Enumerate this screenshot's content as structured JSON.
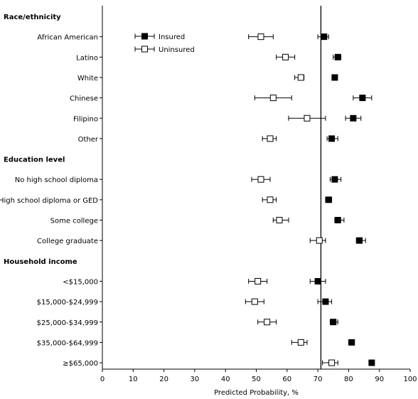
{
  "chart_data": {
    "type": "scatter",
    "xlabel": "Predicted Probability, %",
    "xlim": [
      0,
      100
    ],
    "xticks": [
      0,
      10,
      20,
      30,
      40,
      50,
      60,
      70,
      80,
      90,
      100
    ],
    "reference_line_x": 71,
    "legend": {
      "placement": "top-left",
      "entries": [
        {
          "name": "Insured",
          "marker": "filled-square"
        },
        {
          "name": "Uninsured",
          "marker": "open-square"
        }
      ]
    },
    "groups": [
      {
        "label": "Race/ethnicity",
        "rows": [
          {
            "label": "African American",
            "insured": {
              "value": 72,
              "low": 70,
              "high": 73.5
            },
            "uninsured": {
              "value": 51.5,
              "low": 47.5,
              "high": 55.5
            }
          },
          {
            "label": "Latino",
            "insured": {
              "value": 76.5,
              "low": 75,
              "high": 77.5
            },
            "uninsured": {
              "value": 59.5,
              "low": 56.5,
              "high": 62.5
            }
          },
          {
            "label": "White",
            "insured": {
              "value": 75.5,
              "low": 75,
              "high": 76
            },
            "uninsured": {
              "value": 64.5,
              "low": 62.5,
              "high": 65.5
            }
          },
          {
            "label": "Chinese",
            "insured": {
              "value": 84.5,
              "low": 81.5,
              "high": 87.5
            },
            "uninsured": {
              "value": 55.5,
              "low": 49.5,
              "high": 61.5
            }
          },
          {
            "label": "Filipino",
            "insured": {
              "value": 81.5,
              "low": 79,
              "high": 84
            },
            "uninsured": {
              "value": 66.5,
              "low": 60.5,
              "high": 72.5
            }
          },
          {
            "label": "Other",
            "insured": {
              "value": 74.5,
              "low": 73,
              "high": 76.5
            },
            "uninsured": {
              "value": 54.5,
              "low": 52,
              "high": 56.5
            }
          }
        ]
      },
      {
        "label": "Education level",
        "rows": [
          {
            "label": "No high school diploma",
            "insured": {
              "value": 75.5,
              "low": 74,
              "high": 77.5
            },
            "uninsured": {
              "value": 51.5,
              "low": 48.5,
              "high": 54.5
            }
          },
          {
            "label": "High school diploma or GED",
            "insured": {
              "value": 73.5,
              "low": 72.5,
              "high": 74.5
            },
            "uninsured": {
              "value": 54.5,
              "low": 52,
              "high": 56.5
            }
          },
          {
            "label": "Some college",
            "insured": {
              "value": 76.5,
              "low": 75.5,
              "high": 78.5
            },
            "uninsured": {
              "value": 57.5,
              "low": 55.5,
              "high": 60.5
            }
          },
          {
            "label": "College graduate",
            "insured": {
              "value": 83.5,
              "low": 82.5,
              "high": 85.5
            },
            "uninsured": {
              "value": 70.5,
              "low": 67.5,
              "high": 72.5
            }
          }
        ]
      },
      {
        "label": "Household income",
        "rows": [
          {
            "label": "<$15,000",
            "insured": {
              "value": 70,
              "low": 67.5,
              "high": 72.5
            },
            "uninsured": {
              "value": 50.5,
              "low": 47.5,
              "high": 53.5
            }
          },
          {
            "label": "$15,000-$24,999",
            "insured": {
              "value": 72.5,
              "low": 70,
              "high": 74.5
            },
            "uninsured": {
              "value": 49.5,
              "low": 46.5,
              "high": 52.5
            }
          },
          {
            "label": "$25,000-$34,999",
            "insured": {
              "value": 75,
              "low": 74,
              "high": 76.5
            },
            "uninsured": {
              "value": 53.5,
              "low": 50.5,
              "high": 56.5
            }
          },
          {
            "label": "$35,000-$64,999",
            "insured": {
              "value": 81,
              "low": 80,
              "high": 81.5
            },
            "uninsured": {
              "value": 64.5,
              "low": 61.5,
              "high": 66.5
            }
          },
          {
            "label": "≥$65,000",
            "insured": {
              "value": 87.5,
              "low": 87,
              "high": 88
            },
            "uninsured": {
              "value": 74.5,
              "low": 71.5,
              "high": 76.5
            }
          }
        ]
      }
    ]
  }
}
